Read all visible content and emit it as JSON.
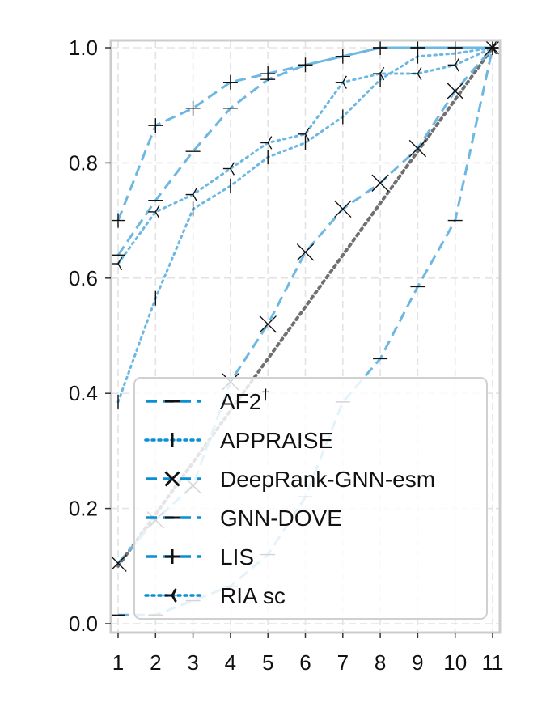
{
  "chart_data": {
    "type": "line",
    "title": "",
    "xlabel": "",
    "ylabel": "",
    "x": [
      1,
      2,
      3,
      4,
      5,
      6,
      7,
      8,
      9,
      10,
      11
    ],
    "x_ticks": [
      "1",
      "2",
      "3",
      "4",
      "5",
      "6",
      "7",
      "8",
      "9",
      "10",
      "11"
    ],
    "xlim": [
      0.8,
      11.2
    ],
    "ylim": [
      0.0,
      1.0
    ],
    "y_ticks": [
      "0.0",
      "0.2",
      "0.4",
      "0.6",
      "0.8",
      "1.0"
    ],
    "y_tick_values": [
      0.0,
      0.2,
      0.4,
      0.6,
      0.8,
      1.0
    ],
    "grid": true,
    "legend_position": "bottom-right",
    "line_color": "#6cb8e2",
    "legend_line_color": "#0a8fd4",
    "diagonal_color": "#707070",
    "diagonal": [
      [
        1,
        0.1
      ],
      [
        11,
        1.0
      ]
    ],
    "series": [
      {
        "name": "AF2",
        "name_sup": "†",
        "style": "dashed",
        "marker": "hline",
        "points": [
          [
            1,
            0.015
          ],
          [
            2,
            0.015
          ],
          [
            3,
            0.04
          ],
          [
            4,
            0.065
          ],
          [
            5,
            0.12
          ],
          [
            6,
            0.22
          ],
          [
            7,
            0.385
          ],
          [
            8,
            0.46
          ],
          [
            9,
            0.585
          ],
          [
            10,
            0.7
          ],
          [
            11,
            1.0
          ]
        ]
      },
      {
        "name": "APPRAISE",
        "style": "dotted",
        "marker": "vline",
        "points": [
          [
            1,
            0.385
          ],
          [
            2,
            0.565
          ],
          [
            3,
            0.72
          ],
          [
            4,
            0.76
          ],
          [
            5,
            0.81
          ],
          [
            6,
            0.835
          ],
          [
            7,
            0.88
          ],
          [
            8,
            0.945
          ],
          [
            9,
            0.985
          ],
          [
            10,
            0.99
          ],
          [
            11,
            1.0
          ]
        ]
      },
      {
        "name": "DeepRank-GNN-esm",
        "style": "dashed",
        "marker": "x",
        "points": [
          [
            1,
            0.105
          ],
          [
            2,
            0.18
          ],
          [
            3,
            0.24
          ],
          [
            4,
            0.42
          ],
          [
            5,
            0.52
          ],
          [
            6,
            0.645
          ],
          [
            7,
            0.72
          ],
          [
            8,
            0.765
          ],
          [
            9,
            0.825
          ],
          [
            10,
            0.925
          ],
          [
            11,
            1.0
          ]
        ]
      },
      {
        "name": "GNN-DOVE",
        "style": "dashed",
        "marker": "hline",
        "points": [
          [
            1,
            0.64
          ],
          [
            2,
            0.735
          ],
          [
            3,
            0.82
          ],
          [
            4,
            0.895
          ],
          [
            5,
            0.945
          ],
          [
            6,
            0.97
          ],
          [
            7,
            0.985
          ],
          [
            8,
            1.0
          ],
          [
            9,
            1.0
          ],
          [
            10,
            1.0
          ],
          [
            11,
            1.0
          ]
        ]
      },
      {
        "name": "LIS",
        "style": "dashed",
        "marker": "plus",
        "points": [
          [
            1,
            0.7
          ],
          [
            2,
            0.865
          ],
          [
            3,
            0.895
          ],
          [
            4,
            0.94
          ],
          [
            5,
            0.955
          ],
          [
            6,
            0.97
          ],
          [
            7,
            0.985
          ],
          [
            8,
            1.0
          ],
          [
            9,
            1.0
          ],
          [
            10,
            1.0
          ],
          [
            11,
            1.0
          ]
        ]
      },
      {
        "name": "RIA sc",
        "style": "dotted",
        "marker": "tri",
        "points": [
          [
            1,
            0.625
          ],
          [
            2,
            0.715
          ],
          [
            3,
            0.745
          ],
          [
            4,
            0.79
          ],
          [
            5,
            0.835
          ],
          [
            6,
            0.85
          ],
          [
            7,
            0.94
          ],
          [
            8,
            0.955
          ],
          [
            9,
            0.955
          ],
          [
            10,
            0.97
          ],
          [
            11,
            1.0
          ]
        ]
      }
    ]
  }
}
